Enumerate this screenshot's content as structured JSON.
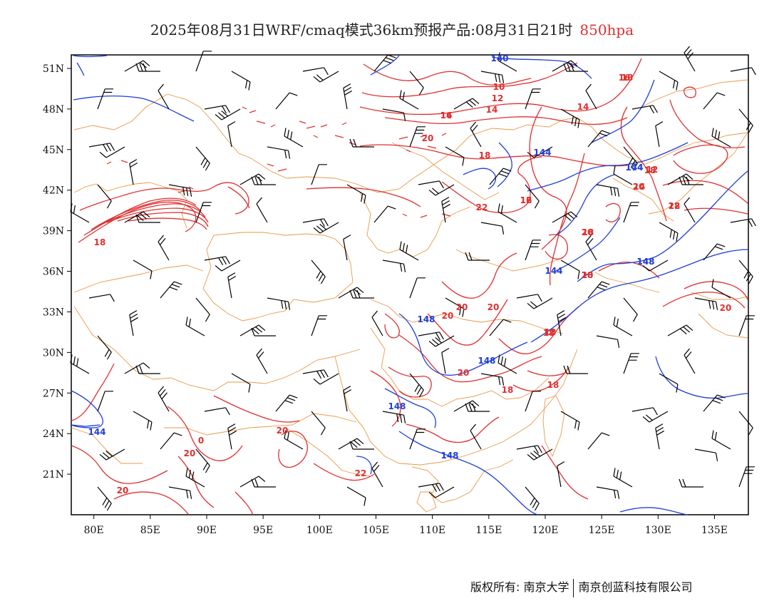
{
  "title": {
    "main": "2025年08月31日WRF/cmaq模式36km预报产品:08月31日21时",
    "level": "850hpa",
    "level_color": "#e03030"
  },
  "map": {
    "lon_range": [
      78,
      138
    ],
    "lat_range": [
      18,
      52
    ],
    "lon_ticks": [
      "80E",
      "85E",
      "90E",
      "95E",
      "100E",
      "105E",
      "110E",
      "115E",
      "120E",
      "125E",
      "130E",
      "135E"
    ],
    "lat_ticks": [
      "51N",
      "48N",
      "45N",
      "42N",
      "39N",
      "36N",
      "33N",
      "30N",
      "27N",
      "24N",
      "21N"
    ],
    "colors": {
      "temperature_contour": "#e03030",
      "height_contour": "#1f3fd8",
      "boundary": "#e89a4a",
      "wind_barb": "#000000"
    },
    "temperature_labels": [
      "10",
      "12",
      "14",
      "16",
      "18",
      "20",
      "22",
      "12",
      "14",
      "16",
      "18",
      "20",
      "22",
      "20",
      "18",
      "20",
      "20",
      "20",
      "20",
      "18",
      "18",
      "18",
      "20",
      "22",
      "20",
      "20",
      "20",
      "18",
      "12",
      "14",
      "18",
      "18",
      "20",
      "18",
      "16",
      "14",
      "18",
      "0"
    ],
    "height_labels": [
      "140",
      "144",
      "144",
      "144",
      "148",
      "148",
      "148",
      "148",
      "148",
      "144",
      "144",
      "148"
    ]
  },
  "footer": {
    "copyright": "版权所有: 南京大学",
    "company": "南京创蓝科技有限公司"
  }
}
